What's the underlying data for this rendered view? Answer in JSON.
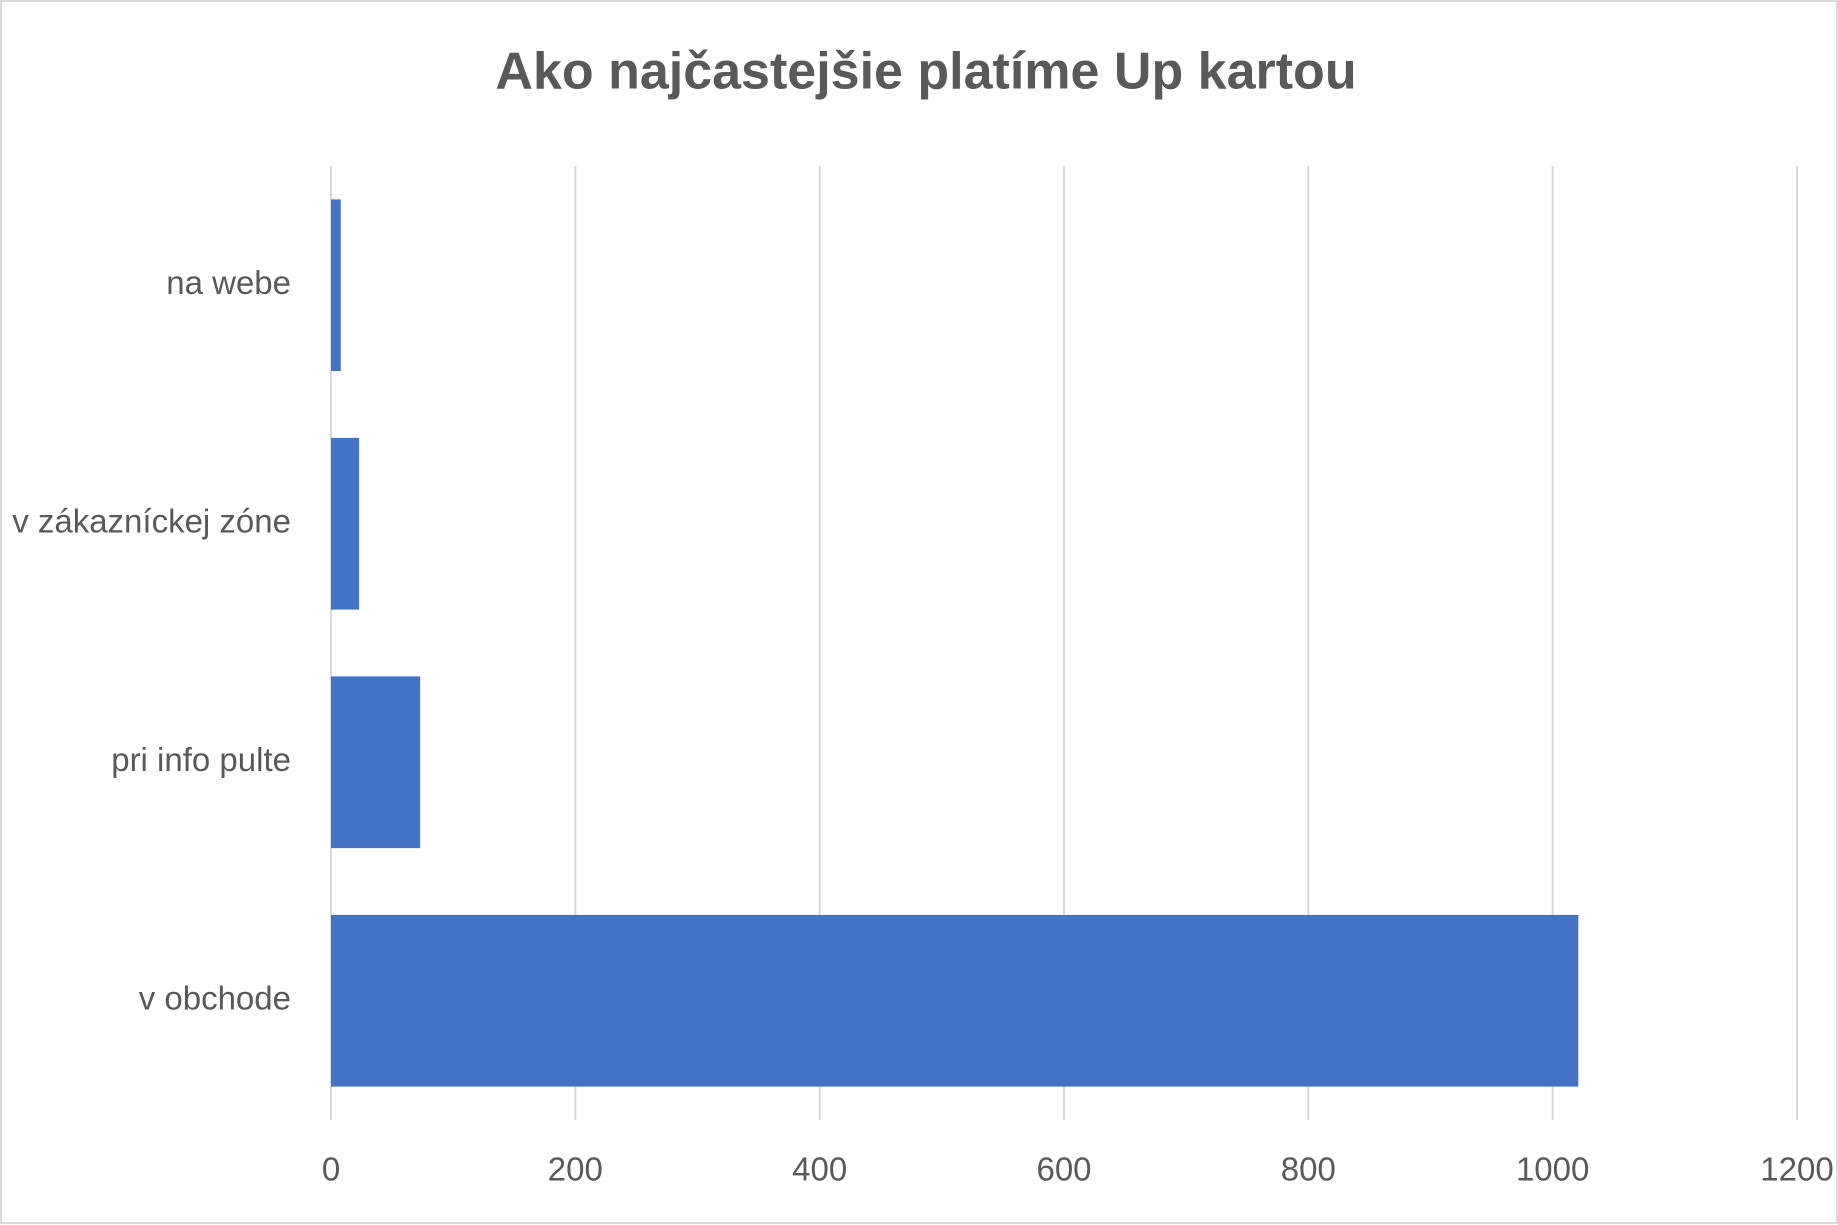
{
  "chart_data": {
    "type": "bar",
    "orientation": "horizontal",
    "title": "Ako najčastejšie platíme Up kartou",
    "categories": [
      "na webe",
      "v zákazníckej zóne",
      "pri info pulte",
      "v obchode"
    ],
    "values": [
      8,
      23,
      73,
      1021
    ],
    "color": "#4472c4",
    "xlim": [
      0,
      1200
    ],
    "xticks": [
      0,
      200,
      400,
      600,
      800,
      1000,
      1200
    ],
    "grid": true
  }
}
